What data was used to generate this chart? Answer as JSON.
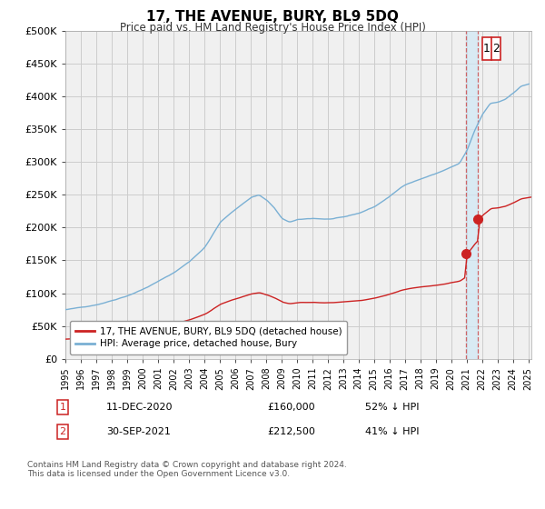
{
  "title": "17, THE AVENUE, BURY, BL9 5DQ",
  "subtitle": "Price paid vs. HM Land Registry's House Price Index (HPI)",
  "ylabel_ticks": [
    "£0",
    "£50K",
    "£100K",
    "£150K",
    "£200K",
    "£250K",
    "£300K",
    "£350K",
    "£400K",
    "£450K",
    "£500K"
  ],
  "ytick_values": [
    0,
    50000,
    100000,
    150000,
    200000,
    250000,
    300000,
    350000,
    400000,
    450000,
    500000
  ],
  "ylim": [
    0,
    500000
  ],
  "xlim_start": 1995.5,
  "xlim_end": 2025.2,
  "hpi_color": "#7ab0d4",
  "price_color": "#cc2222",
  "marker_color": "#cc2222",
  "bg_color": "#f0f0f0",
  "grid_color": "#cccccc",
  "legend_label_price": "17, THE AVENUE, BURY, BL9 5DQ (detached house)",
  "legend_label_hpi": "HPI: Average price, detached house, Bury",
  "sale1_date": "11-DEC-2020",
  "sale1_price": "£160,000",
  "sale1_hpi": "52% ↓ HPI",
  "sale2_date": "30-SEP-2021",
  "sale2_price": "£212,500",
  "sale2_hpi": "41% ↓ HPI",
  "footnote": "Contains HM Land Registry data © Crown copyright and database right 2024.\nThis data is licensed under the Open Government Licence v3.0.",
  "sale1_x": 2020.95,
  "sale1_y": 160000,
  "sale2_x": 2021.75,
  "sale2_y": 212500,
  "vline1_x": 2020.95,
  "vline2_x": 2021.75
}
